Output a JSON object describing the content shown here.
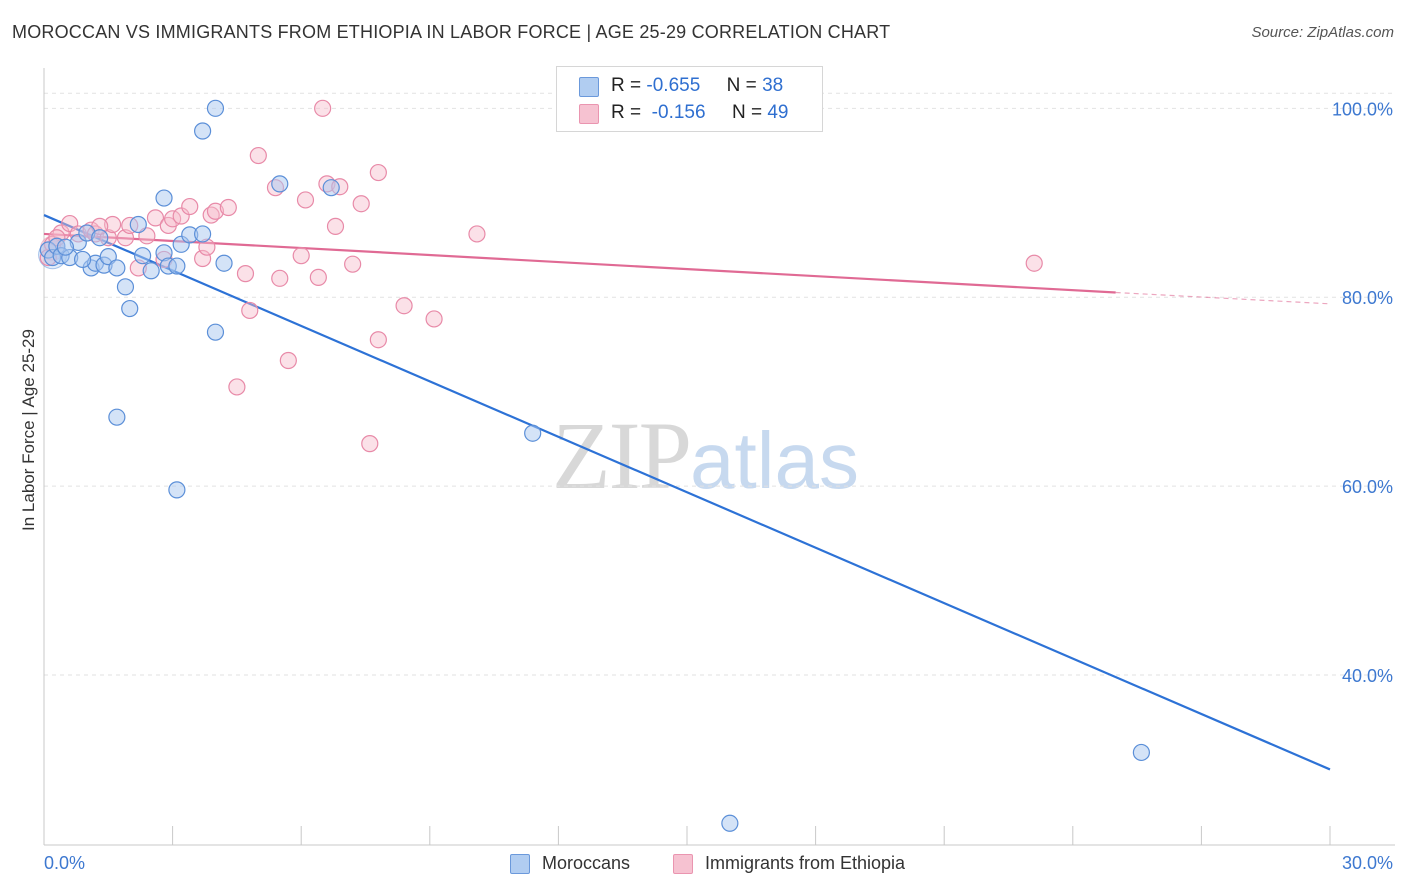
{
  "title": "MOROCCAN VS IMMIGRANTS FROM ETHIOPIA IN LABOR FORCE | AGE 25-29 CORRELATION CHART",
  "source": "Source: ZipAtlas.com",
  "watermark": {
    "zip": "ZIP",
    "atlas": "atlas"
  },
  "colors": {
    "blue_fill": "#a9c8f0",
    "blue_stroke": "#5b8fd8",
    "blue_line": "#2d72d6",
    "pink_fill": "#f6bccd",
    "pink_stroke": "#e88aa8",
    "pink_line": "#e06a94",
    "axis_label_blue": "#3d78d0"
  },
  "legend": {
    "moroccans": {
      "r_label": "R =",
      "r_value": "-0.655",
      "n_label": "N =",
      "n_value": "38"
    },
    "ethiopia": {
      "r_label": "R =",
      "r_value": "-0.156",
      "n_label": "N =",
      "n_value": "49"
    }
  },
  "bottom_legend": {
    "moroccans": "Moroccans",
    "ethiopia": "Immigrants from Ethiopia"
  },
  "chart_data": {
    "type": "scatter",
    "title": "MOROCCAN VS IMMIGRANTS FROM ETHIOPIA IN LABOR FORCE | AGE 25-29 CORRELATION CHART",
    "xlabel": "",
    "ylabel": "In Labor Force | Age 25-29",
    "xlim": [
      0,
      30
    ],
    "ylim": [
      22,
      103
    ],
    "x_tick_labels": [
      "0.0%",
      "30.0%"
    ],
    "y_ticks": [
      40,
      60,
      80,
      100
    ],
    "y_tick_labels": [
      "40.0%",
      "60.0%",
      "80.0%",
      "100.0%"
    ],
    "grid": true,
    "legend_position": "top-center",
    "series": [
      {
        "name": "Moroccans",
        "r": -0.655,
        "n": 38,
        "points": [
          [
            0.1,
            85.0
          ],
          [
            0.2,
            84.2
          ],
          [
            0.3,
            85.4
          ],
          [
            0.4,
            84.4
          ],
          [
            0.6,
            84.2
          ],
          [
            0.8,
            85.8
          ],
          [
            1.0,
            86.8
          ],
          [
            1.1,
            83.1
          ],
          [
            1.2,
            83.6
          ],
          [
            1.4,
            83.4
          ],
          [
            1.5,
            84.3
          ],
          [
            1.7,
            83.1
          ],
          [
            1.9,
            81.1
          ],
          [
            2.0,
            78.8
          ],
          [
            2.2,
            87.7
          ],
          [
            2.3,
            84.4
          ],
          [
            2.5,
            82.8
          ],
          [
            2.8,
            84.7
          ],
          [
            2.8,
            90.5
          ],
          [
            2.9,
            83.3
          ],
          [
            3.1,
            83.3
          ],
          [
            3.2,
            85.6
          ],
          [
            3.4,
            86.6
          ],
          [
            3.7,
            86.7
          ],
          [
            4.0,
            76.3
          ],
          [
            4.2,
            83.6
          ],
          [
            1.7,
            67.3
          ],
          [
            3.1,
            59.6
          ],
          [
            3.7,
            97.6
          ],
          [
            4.0,
            100.0
          ],
          [
            5.5,
            92.0
          ],
          [
            6.7,
            91.6
          ],
          [
            11.4,
            65.6
          ],
          [
            16.0,
            24.3
          ],
          [
            25.6,
            31.8
          ],
          [
            0.5,
            85.3
          ],
          [
            1.3,
            86.3
          ],
          [
            0.9,
            84.0
          ]
        ],
        "trend": {
          "x": [
            0.0,
            30.0
          ],
          "y": [
            88.7,
            30.0
          ]
        }
      },
      {
        "name": "Immigrants from Ethiopia",
        "r": -0.156,
        "n": 49,
        "points": [
          [
            0.1,
            84.2
          ],
          [
            0.2,
            85.6
          ],
          [
            0.4,
            86.8
          ],
          [
            0.6,
            87.8
          ],
          [
            0.8,
            86.7
          ],
          [
            1.1,
            87.1
          ],
          [
            1.2,
            86.7
          ],
          [
            1.5,
            86.3
          ],
          [
            1.6,
            87.7
          ],
          [
            1.9,
            86.3
          ],
          [
            2.0,
            87.6
          ],
          [
            2.2,
            83.1
          ],
          [
            2.4,
            86.5
          ],
          [
            2.6,
            88.4
          ],
          [
            2.8,
            84.0
          ],
          [
            2.9,
            87.6
          ],
          [
            3.0,
            88.3
          ],
          [
            3.2,
            88.6
          ],
          [
            3.4,
            89.6
          ],
          [
            3.7,
            84.1
          ],
          [
            3.8,
            85.3
          ],
          [
            3.9,
            88.7
          ],
          [
            4.0,
            89.1
          ],
          [
            4.3,
            89.5
          ],
          [
            4.5,
            70.5
          ],
          [
            4.7,
            82.5
          ],
          [
            4.8,
            78.6
          ],
          [
            5.0,
            95.0
          ],
          [
            5.4,
            91.6
          ],
          [
            5.5,
            82.0
          ],
          [
            5.7,
            73.3
          ],
          [
            6.0,
            84.4
          ],
          [
            6.1,
            90.3
          ],
          [
            6.4,
            82.1
          ],
          [
            6.5,
            100.0
          ],
          [
            6.6,
            92.0
          ],
          [
            6.8,
            87.5
          ],
          [
            6.9,
            91.7
          ],
          [
            7.2,
            83.5
          ],
          [
            7.4,
            89.9
          ],
          [
            7.6,
            64.5
          ],
          [
            7.8,
            75.5
          ],
          [
            7.8,
            93.2
          ],
          [
            8.4,
            79.1
          ],
          [
            9.1,
            77.7
          ],
          [
            10.1,
            86.7
          ],
          [
            23.1,
            83.6
          ],
          [
            0.3,
            86.3
          ],
          [
            1.3,
            87.5
          ]
        ],
        "trend": {
          "x": [
            0.0,
            25.0
          ],
          "y": [
            86.7,
            80.5
          ]
        },
        "trend_dashed": {
          "x": [
            25.0,
            30.0
          ],
          "y": [
            80.5,
            79.3
          ]
        }
      }
    ]
  }
}
